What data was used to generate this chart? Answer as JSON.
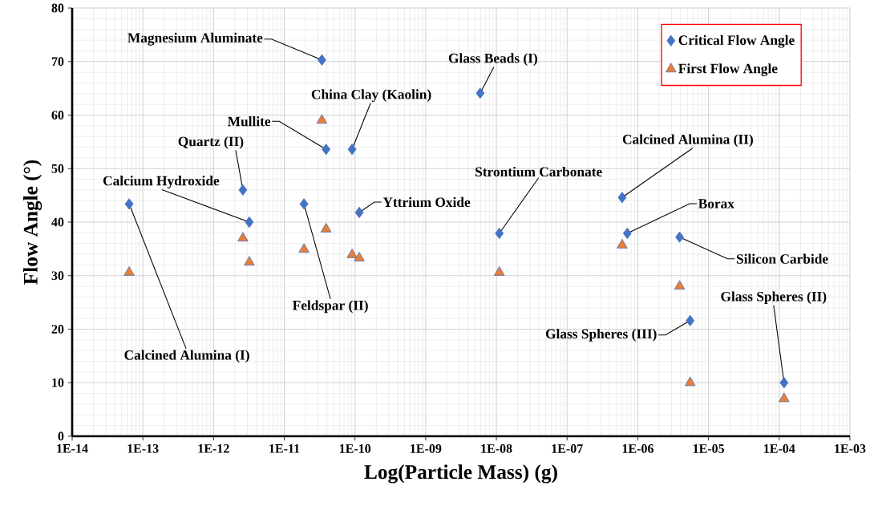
{
  "chart_data": {
    "type": "scatter",
    "xlabel": "Log(Particle Mass) (g)",
    "ylabel": "Flow Angle (°)",
    "log": "x",
    "grid": true,
    "legend": "top right",
    "xlim": [
      1e-14,
      0.001
    ],
    "ylim": [
      0,
      80
    ],
    "xticks": [
      {
        "value": 1e-14,
        "label": "1E-14"
      },
      {
        "value": 1e-13,
        "label": "1E-13"
      },
      {
        "value": 1e-12,
        "label": "1E-12"
      },
      {
        "value": 1e-11,
        "label": "1E-11"
      },
      {
        "value": 1e-10,
        "label": "1E-10"
      },
      {
        "value": 1e-09,
        "label": "1E-09"
      },
      {
        "value": 1e-08,
        "label": "1E-08"
      },
      {
        "value": 1e-07,
        "label": "1E-07"
      },
      {
        "value": 1e-06,
        "label": "1E-06"
      },
      {
        "value": 1e-05,
        "label": "1E-05"
      },
      {
        "value": 0.0001,
        "label": "1E-04"
      },
      {
        "value": 0.001,
        "label": "1E-03"
      }
    ],
    "yticks": [
      0,
      10,
      20,
      30,
      40,
      50,
      60,
      70,
      80
    ],
    "series": [
      {
        "name": "Critical Flow Angle",
        "color": "#4472c4",
        "marker": "diamond",
        "x": [
          6.4e-14,
          2.6e-12,
          3.2e-12,
          1.9e-11,
          3.4e-11,
          3.9e-11,
          9.1e-11,
          1.15e-10,
          5.9e-09,
          1.1e-08,
          6e-07,
          7.1e-07,
          3.9e-06,
          5.5e-06,
          0.000117
        ],
        "values": [
          43.4,
          46,
          40,
          43.4,
          70.3,
          53.6,
          53.6,
          41.8,
          64.1,
          37.9,
          44.6,
          37.9,
          37.2,
          21.6,
          10
        ]
      },
      {
        "name": "First Flow Angle",
        "color": "#ed7d31",
        "marker": "triangle",
        "x": [
          6.4e-14,
          2.6e-12,
          3.2e-12,
          1.9e-11,
          3.4e-11,
          3.9e-11,
          9.1e-11,
          1.15e-10,
          1.1e-08,
          6e-07,
          3.9e-06,
          5.5e-06,
          0.000117
        ],
        "values": [
          30.6,
          37,
          32.5,
          34.9,
          59,
          38.7,
          33.9,
          33.3,
          30.6,
          35.7,
          28,
          10,
          7
        ]
      }
    ],
    "annotations": [
      {
        "text": "Calcined Alumina (I)",
        "x": 6.4e-14,
        "y": 43.4
      },
      {
        "text": "Quartz (II)",
        "x": 2.6e-12,
        "y": 46
      },
      {
        "text": "Calcium Hydroxide",
        "x": 3.2e-12,
        "y": 40
      },
      {
        "text": "Feldspar (II)",
        "x": 1.9e-11,
        "y": 43.4
      },
      {
        "text": "Magnesium Aluminate",
        "x": 3.4e-11,
        "y": 70.3
      },
      {
        "text": "Mullite",
        "x": 3.9e-11,
        "y": 53.6
      },
      {
        "text": "China Clay (Kaolin)",
        "x": 9.1e-11,
        "y": 53.6
      },
      {
        "text": "Yttrium Oxide",
        "x": 1.15e-10,
        "y": 41.8
      },
      {
        "text": "Glass Beads (I)",
        "x": 5.9e-09,
        "y": 64.1
      },
      {
        "text": "Strontium Carbonate",
        "x": 1.1e-08,
        "y": 37.9
      },
      {
        "text": "Calcined Alumina (II)",
        "x": 6e-07,
        "y": 44.6
      },
      {
        "text": "Borax",
        "x": 7.1e-07,
        "y": 37.9
      },
      {
        "text": "Silicon Carbide",
        "x": 3.9e-06,
        "y": 37.2
      },
      {
        "text": "Glass Spheres (III)",
        "x": 5.5e-06,
        "y": 21.6
      },
      {
        "text": "Glass Spheres (II)",
        "x": 0.000117,
        "y": 10
      }
    ]
  }
}
